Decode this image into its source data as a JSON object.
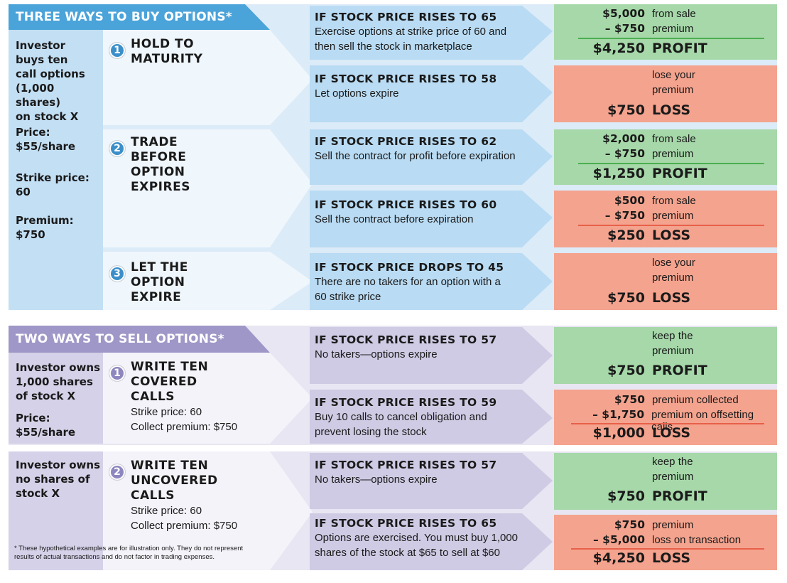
{
  "colors": {
    "buy_header": "#4aa3d9",
    "buy_panel": "#dcebf8",
    "buy_left": "#c3dff4",
    "sell_header": "#9e97c7",
    "sell_panel": "#e8e6f2",
    "sell_left": "#d4d1e8",
    "profit_box": "#a6d8a9",
    "loss_box": "#f4a38e",
    "profit_rule": "#4caf50",
    "loss_rule": "#e8604a"
  },
  "buy": {
    "header": "THREE WAYS TO BUY OPTIONS*",
    "left": {
      "desc": [
        "Investor",
        "buys ten",
        "call options",
        "(1,000 shares)",
        "on stock X"
      ],
      "price_label": "Price:",
      "price_value": "$55/share",
      "strike_label": "Strike price:",
      "strike_value": "60",
      "premium_label": "Premium:",
      "premium_value": "$750"
    },
    "strategies": [
      {
        "num": "1",
        "title": [
          "HOLD TO",
          "MATURITY"
        ]
      },
      {
        "num": "2",
        "title": [
          "TRADE",
          "BEFORE",
          "OPTION",
          "EXPIRES"
        ]
      },
      {
        "num": "3",
        "title": [
          "LET THE",
          "OPTION",
          "EXPIRE"
        ]
      }
    ],
    "scenarios": [
      {
        "title": "IF STOCK PRICE RISES TO 65",
        "desc": [
          "Exercise options at strike price of 60 and",
          "then sell the stock in marketplace"
        ]
      },
      {
        "title": "IF STOCK PRICE RISES TO 58",
        "desc": [
          "Let options expire"
        ]
      },
      {
        "title": "IF STOCK PRICE RISES TO 62",
        "desc": [
          "Sell the contract for profit before expiration"
        ]
      },
      {
        "title": "IF STOCK PRICE RISES TO 60",
        "desc": [
          "Sell the contract before expiration"
        ]
      },
      {
        "title": "IF STOCK PRICE DROPS TO 45",
        "desc": [
          "There are no takers for an option with a",
          "60 strike price"
        ]
      }
    ],
    "results": [
      {
        "rows": [
          {
            "amt": "$5,000",
            "note": "from sale"
          },
          {
            "amt": "– $750",
            "note": "premium"
          }
        ],
        "total": "$4,250",
        "label": "PROFIT",
        "kind": "profit"
      },
      {
        "rows": [
          {
            "amt": "",
            "note": "lose your"
          },
          {
            "amt": "",
            "note": "premium"
          }
        ],
        "total": "$750",
        "label": "LOSS",
        "kind": "loss"
      },
      {
        "rows": [
          {
            "amt": "$2,000",
            "note": "from sale"
          },
          {
            "amt": "– $750",
            "note": "premium"
          }
        ],
        "total": "$1,250",
        "label": "PROFIT",
        "kind": "profit"
      },
      {
        "rows": [
          {
            "amt": "$500",
            "note": "from sale"
          },
          {
            "amt": "– $750",
            "note": "premium"
          }
        ],
        "total": "$250",
        "label": "LOSS",
        "kind": "loss"
      },
      {
        "rows": [
          {
            "amt": "",
            "note": "lose your"
          },
          {
            "amt": "",
            "note": "premium"
          }
        ],
        "total": "$750",
        "label": "LOSS",
        "kind": "loss"
      }
    ]
  },
  "sell": {
    "header": "TWO WAYS TO SELL OPTIONS*",
    "left1": {
      "desc": [
        "Investor owns",
        "1,000 shares",
        "of stock X"
      ],
      "price_label": "Price:",
      "price_value": "$55/share"
    },
    "left2": {
      "desc": [
        "Investor owns",
        "no shares of",
        "stock X"
      ]
    },
    "strategies": [
      {
        "num": "1",
        "title": [
          "WRITE TEN",
          "COVERED",
          "CALLS"
        ],
        "sub": [
          "Strike price: 60",
          "Collect premium: $750"
        ]
      },
      {
        "num": "2",
        "title": [
          "WRITE TEN",
          "UNCOVERED",
          "CALLS"
        ],
        "sub": [
          "Strike price: 60",
          "Collect premium: $750"
        ]
      }
    ],
    "scenarios": [
      {
        "title": "IF STOCK PRICE RISES TO 57",
        "desc": [
          "No takers—options expire"
        ]
      },
      {
        "title": "IF STOCK PRICE RISES TO 59",
        "desc": [
          "Buy 10 calls to cancel obligation and",
          "prevent losing the stock"
        ]
      },
      {
        "title": "IF STOCK PRICE RISES TO 57",
        "desc": [
          "No takers—options expire"
        ]
      },
      {
        "title": "IF STOCK PRICE RISES TO 65",
        "desc": [
          "Options are exercised. You must buy 1,000",
          "shares of the stock at $65 to sell at $60"
        ]
      }
    ],
    "results": [
      {
        "rows": [
          {
            "amt": "",
            "note": "keep the"
          },
          {
            "amt": "",
            "note": "premium"
          }
        ],
        "total": "$750",
        "label": "PROFIT",
        "kind": "profit"
      },
      {
        "rows": [
          {
            "amt": "$750",
            "note": "premium collected"
          },
          {
            "amt": "– $1,750",
            "note": "premium on offsetting calls"
          }
        ],
        "total": "$1,000",
        "label": "LOSS",
        "kind": "loss"
      },
      {
        "rows": [
          {
            "amt": "",
            "note": "keep the"
          },
          {
            "amt": "",
            "note": "premium"
          }
        ],
        "total": "$750",
        "label": "PROFIT",
        "kind": "profit"
      },
      {
        "rows": [
          {
            "amt": "$750",
            "note": "premium"
          },
          {
            "amt": "– $5,000",
            "note": "loss on transaction"
          }
        ],
        "total": "$4,250",
        "label": "LOSS",
        "kind": "loss"
      }
    ],
    "footnote": [
      "* These hypothetical examples are for illustration only. They do not represent",
      "results of actual transactions and do not factor in trading expenses."
    ]
  }
}
